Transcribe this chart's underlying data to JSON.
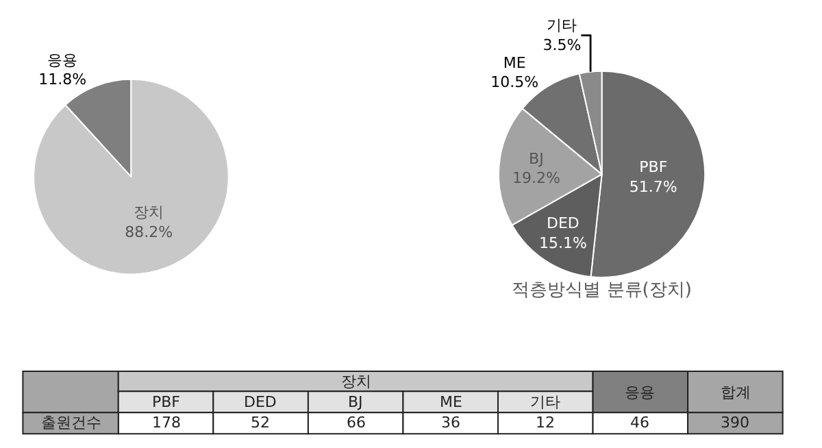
{
  "chart_data": [
    {
      "type": "pie",
      "categories": [
        "응용",
        "장치"
      ],
      "values": [
        11.8,
        88.2
      ],
      "colors": [
        "#7f7f7f",
        "#c8c8c8"
      ],
      "value_labels": [
        "11.8%",
        "88.2%"
      ]
    },
    {
      "type": "pie",
      "title": "적층방식별 분류(장치)",
      "categories": [
        "PBF",
        "DED",
        "BJ",
        "ME",
        "기타"
      ],
      "values": [
        51.7,
        15.1,
        19.2,
        10.5,
        3.5
      ],
      "colors": [
        "#6b6b6b",
        "#5e5e5e",
        "#a3a3a3",
        "#707070",
        "#8a8a8a"
      ],
      "value_labels": [
        "51.7%",
        "15.1%",
        "19.2%",
        "10.5%",
        "3.5%"
      ]
    },
    {
      "type": "other",
      "categories": [
        "PBF",
        "DED",
        "BJ",
        "ME",
        "기타",
        "응용",
        "합계"
      ],
      "values": [
        178,
        52,
        66,
        36,
        12,
        46,
        390
      ],
      "data_labels": true,
      "annotations": [
        "장치",
        "출원건수"
      ]
    }
  ]
}
